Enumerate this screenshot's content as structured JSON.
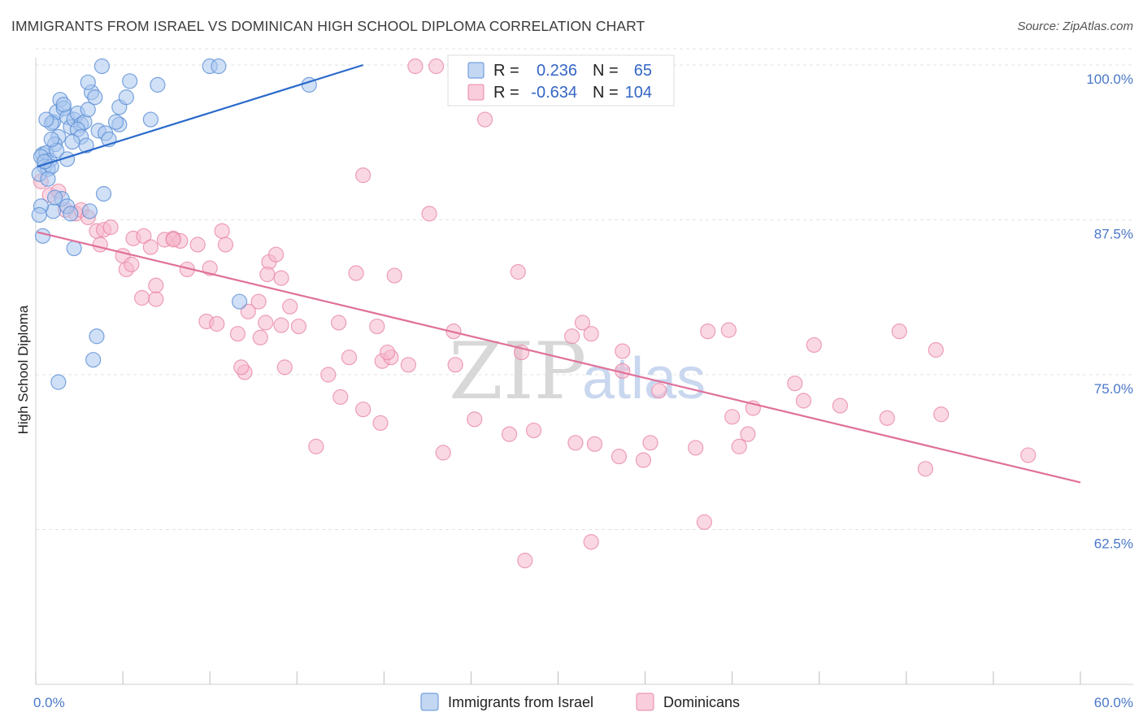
{
  "title": "IMMIGRANTS FROM ISRAEL VS DOMINICAN HIGH SCHOOL DIPLOMA CORRELATION CHART",
  "source": "Source: ZipAtlas.com",
  "watermark": {
    "zip": "ZIP",
    "atlas": "atlas"
  },
  "colors": {
    "israel_fill": "#a9c6ee",
    "israel_stroke": "#5b8fd6",
    "israel_line": "#2a6acb",
    "dominican_fill": "#f6b8cc",
    "dominican_stroke": "#e888a8",
    "dominican_line": "#e0709a",
    "tick_label": "#4a78c8",
    "grid": "#e3e3e3"
  },
  "legend": {
    "r_label": "R =",
    "n_label": "N =",
    "rows": [
      {
        "r": "0.236",
        "n": "65"
      },
      {
        "r": "-0.634",
        "n": "104"
      }
    ]
  },
  "chart_data": {
    "type": "scatter",
    "xlabel": "",
    "ylabel": "High School Diploma",
    "xlim": [
      0,
      60
    ],
    "ylim": [
      50,
      100
    ],
    "x_tick_labels": [
      "0.0%",
      "60.0%"
    ],
    "y_ticks": [
      {
        "value": 100,
        "label": "100.0%"
      },
      {
        "value": 87.5,
        "label": "87.5%"
      },
      {
        "value": 75,
        "label": "75.0%"
      },
      {
        "value": 62.5,
        "label": "62.5%"
      }
    ],
    "grid": true,
    "legend_position": "top-center",
    "series": [
      {
        "name": "Immigrants from Israel",
        "trend": {
          "x": [
            0.1,
            18.8
          ],
          "y": [
            91.8,
            100.0
          ]
        },
        "points": [
          [
            3.8,
            99.9
          ],
          [
            5.4,
            98.7
          ],
          [
            7.0,
            98.4
          ],
          [
            10.0,
            99.9
          ],
          [
            10.5,
            99.9
          ],
          [
            15.7,
            98.4
          ],
          [
            1.0,
            95.4
          ],
          [
            1.2,
            96.2
          ],
          [
            1.4,
            97.2
          ],
          [
            1.6,
            96.5
          ],
          [
            1.8,
            95.8
          ],
          [
            2.0,
            95.0
          ],
          [
            2.2,
            95.6
          ],
          [
            2.4,
            96.1
          ],
          [
            2.6,
            95.2
          ],
          [
            2.8,
            95.4
          ],
          [
            3.0,
            96.4
          ],
          [
            3.2,
            97.8
          ],
          [
            3.4,
            97.4
          ],
          [
            3.0,
            98.6
          ],
          [
            4.8,
            96.6
          ],
          [
            5.2,
            97.4
          ],
          [
            3.6,
            94.7
          ],
          [
            4.0,
            94.5
          ],
          [
            4.2,
            94.0
          ],
          [
            4.8,
            95.2
          ],
          [
            6.6,
            95.6
          ],
          [
            2.4,
            94.8
          ],
          [
            1.3,
            94.2
          ],
          [
            0.9,
            95.3
          ],
          [
            0.6,
            95.6
          ],
          [
            1.1,
            93.6
          ],
          [
            0.4,
            92.8
          ],
          [
            0.6,
            92.9
          ],
          [
            0.8,
            92.3
          ],
          [
            1.2,
            93.1
          ],
          [
            1.8,
            92.4
          ],
          [
            0.3,
            92.6
          ],
          [
            0.5,
            91.8
          ],
          [
            0.7,
            91.6
          ],
          [
            0.9,
            91.8
          ],
          [
            0.2,
            91.2
          ],
          [
            3.9,
            89.6
          ],
          [
            1.5,
            89.2
          ],
          [
            1.8,
            88.6
          ],
          [
            2.0,
            88.0
          ],
          [
            1.0,
            88.2
          ],
          [
            0.3,
            88.6
          ],
          [
            0.2,
            87.9
          ],
          [
            0.4,
            86.2
          ],
          [
            2.2,
            85.2
          ],
          [
            11.7,
            80.9
          ],
          [
            3.5,
            78.1
          ],
          [
            3.3,
            76.2
          ],
          [
            1.3,
            74.4
          ],
          [
            0.5,
            92.2
          ],
          [
            0.7,
            90.8
          ],
          [
            1.1,
            89.3
          ],
          [
            3.1,
            88.2
          ],
          [
            2.6,
            94.2
          ],
          [
            4.6,
            95.4
          ],
          [
            2.9,
            93.5
          ],
          [
            0.9,
            94.0
          ],
          [
            1.6,
            96.8
          ],
          [
            2.1,
            93.8
          ]
        ]
      },
      {
        "name": "Dominicans",
        "trend": {
          "x": [
            0.1,
            60.0
          ],
          "y": [
            86.5,
            66.3
          ]
        },
        "points": [
          [
            21.8,
            99.9
          ],
          [
            23.0,
            99.9
          ],
          [
            25.8,
            95.6
          ],
          [
            18.8,
            91.1
          ],
          [
            22.6,
            88.0
          ],
          [
            0.3,
            90.6
          ],
          [
            0.8,
            89.5
          ],
          [
            1.3,
            89.8
          ],
          [
            1.7,
            88.3
          ],
          [
            2.3,
            88.0
          ],
          [
            2.6,
            88.3
          ],
          [
            3.0,
            87.7
          ],
          [
            3.5,
            86.6
          ],
          [
            3.9,
            86.7
          ],
          [
            4.3,
            86.9
          ],
          [
            3.7,
            85.5
          ],
          [
            5.6,
            86.0
          ],
          [
            6.2,
            86.2
          ],
          [
            6.6,
            85.3
          ],
          [
            7.4,
            85.9
          ],
          [
            7.9,
            86.0
          ],
          [
            8.3,
            85.8
          ],
          [
            9.3,
            85.5
          ],
          [
            10.7,
            86.6
          ],
          [
            10.9,
            85.5
          ],
          [
            13.4,
            84.1
          ],
          [
            13.8,
            84.7
          ],
          [
            5.0,
            84.6
          ],
          [
            5.2,
            83.5
          ],
          [
            5.5,
            83.9
          ],
          [
            8.7,
            83.5
          ],
          [
            10.0,
            83.6
          ],
          [
            13.3,
            83.1
          ],
          [
            14.1,
            82.8
          ],
          [
            18.4,
            83.2
          ],
          [
            20.6,
            83.0
          ],
          [
            27.7,
            83.3
          ],
          [
            6.1,
            81.2
          ],
          [
            6.9,
            81.1
          ],
          [
            12.8,
            80.9
          ],
          [
            14.6,
            80.5
          ],
          [
            9.8,
            79.3
          ],
          [
            10.4,
            79.1
          ],
          [
            11.6,
            78.3
          ],
          [
            12.9,
            78.0
          ],
          [
            13.2,
            79.2
          ],
          [
            14.1,
            79.0
          ],
          [
            15.1,
            78.9
          ],
          [
            17.4,
            79.2
          ],
          [
            19.6,
            78.9
          ],
          [
            24.0,
            78.5
          ],
          [
            30.8,
            78.1
          ],
          [
            31.4,
            79.2
          ],
          [
            31.9,
            78.3
          ],
          [
            38.6,
            78.5
          ],
          [
            39.8,
            78.6
          ],
          [
            44.7,
            77.4
          ],
          [
            49.6,
            78.5
          ],
          [
            51.7,
            77.0
          ],
          [
            12.0,
            75.2
          ],
          [
            11.8,
            75.6
          ],
          [
            14.3,
            75.6
          ],
          [
            16.8,
            75.0
          ],
          [
            18.0,
            76.4
          ],
          [
            19.9,
            76.1
          ],
          [
            20.4,
            76.4
          ],
          [
            21.4,
            75.8
          ],
          [
            20.2,
            76.8
          ],
          [
            24.1,
            75.8
          ],
          [
            27.9,
            76.8
          ],
          [
            33.7,
            76.9
          ],
          [
            33.7,
            75.3
          ],
          [
            35.8,
            73.7
          ],
          [
            43.6,
            74.3
          ],
          [
            17.5,
            73.2
          ],
          [
            18.8,
            72.2
          ],
          [
            19.8,
            71.1
          ],
          [
            25.2,
            71.4
          ],
          [
            41.2,
            72.3
          ],
          [
            44.1,
            72.9
          ],
          [
            48.9,
            71.5
          ],
          [
            52.0,
            71.8
          ],
          [
            27.2,
            70.2
          ],
          [
            28.6,
            70.5
          ],
          [
            31.0,
            69.5
          ],
          [
            32.1,
            69.4
          ],
          [
            33.5,
            68.4
          ],
          [
            34.9,
            68.1
          ],
          [
            35.3,
            69.5
          ],
          [
            37.9,
            69.1
          ],
          [
            40.0,
            71.6
          ],
          [
            40.4,
            69.2
          ],
          [
            40.9,
            70.2
          ],
          [
            46.2,
            72.5
          ],
          [
            51.1,
            67.4
          ],
          [
            57.0,
            68.5
          ],
          [
            16.1,
            69.2
          ],
          [
            23.4,
            68.7
          ],
          [
            28.1,
            60.0
          ],
          [
            31.9,
            61.5
          ],
          [
            38.4,
            63.1
          ],
          [
            7.9,
            85.9
          ],
          [
            6.9,
            82.2
          ],
          [
            12.2,
            80.1
          ]
        ]
      }
    ]
  },
  "bottom_legend": [
    {
      "label": "Immigrants from Israel"
    },
    {
      "label": "Dominicans"
    }
  ]
}
